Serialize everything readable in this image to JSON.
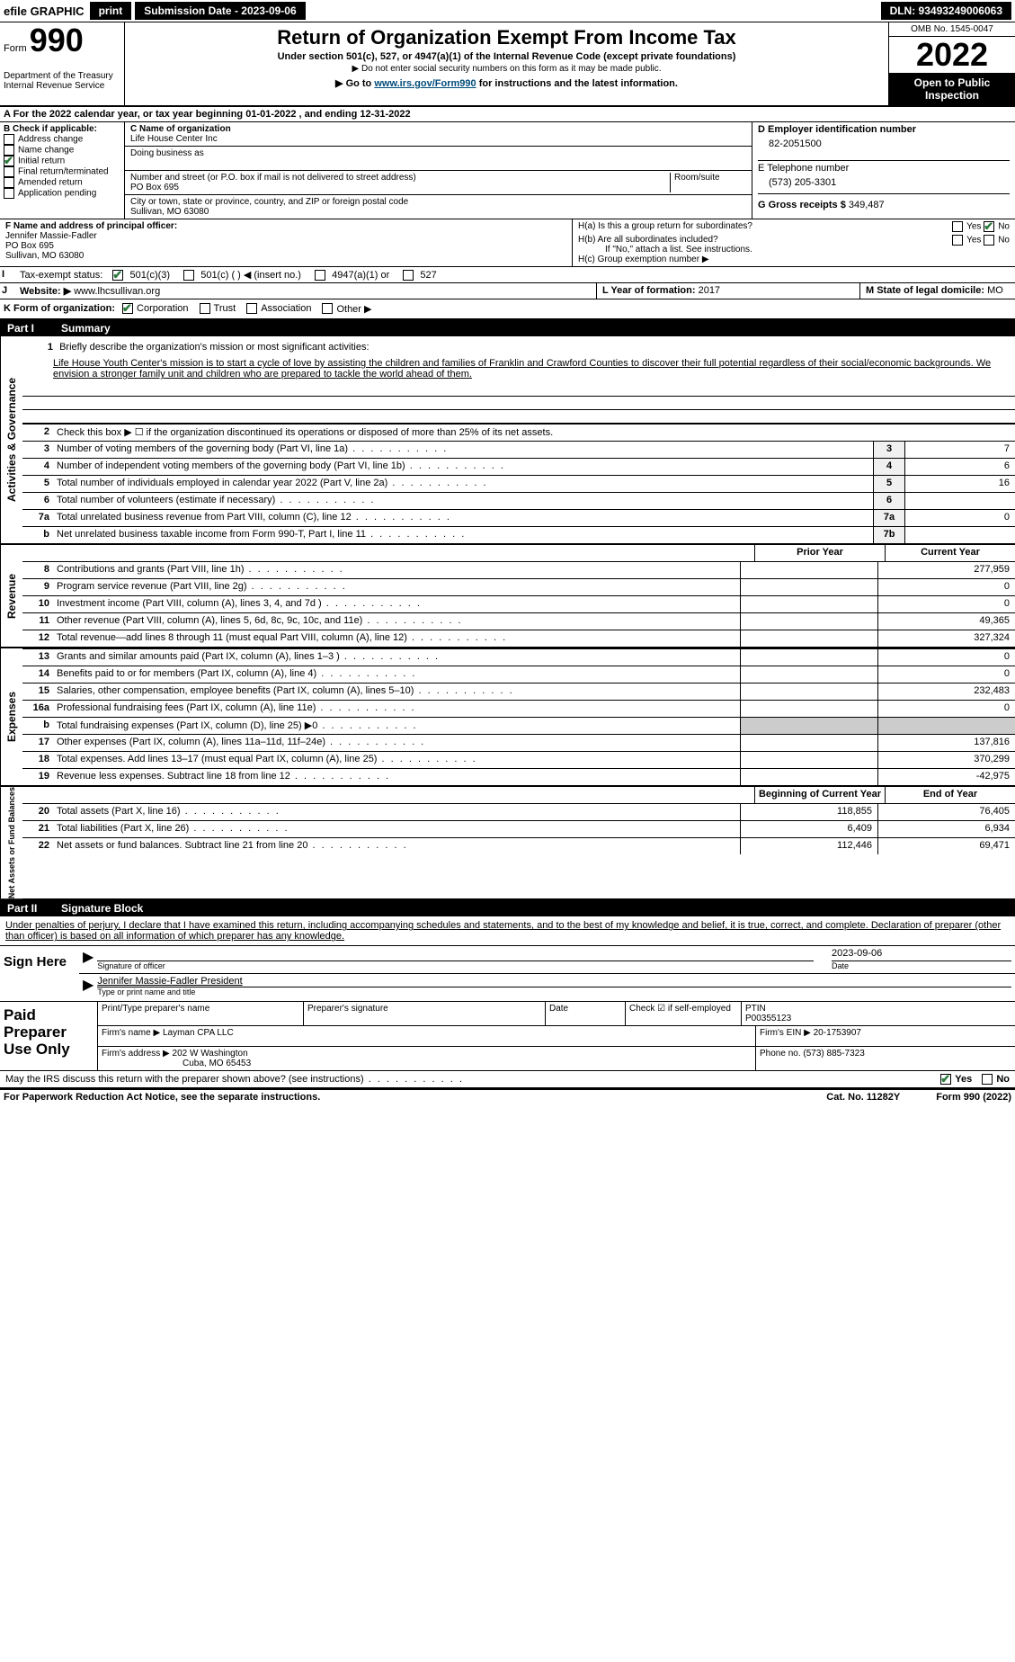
{
  "topbar": {
    "efile": "efile GRAPHIC",
    "print": "print",
    "submission": "Submission Date - 2023-09-06",
    "dln": "DLN: 93493249006063"
  },
  "header": {
    "form_label": "Form",
    "form_number": "990",
    "dept": "Department of the Treasury",
    "irs": "Internal Revenue Service",
    "title": "Return of Organization Exempt From Income Tax",
    "sub": "Under section 501(c), 527, or 4947(a)(1) of the Internal Revenue Code (except private foundations)",
    "note": "▶ Do not enter social security numbers on this form as it may be made public.",
    "link_pre": "▶ Go to ",
    "link_url": "www.irs.gov/Form990",
    "link_post": " for instructions and the latest information.",
    "omb": "OMB No. 1545-0047",
    "year": "2022",
    "open": "Open to Public Inspection"
  },
  "line_a": "For the 2022 calendar year, or tax year beginning 01-01-2022   , and ending 12-31-2022",
  "box_b": {
    "title": "B Check if applicable:",
    "items": [
      "Address change",
      "Name change",
      "Initial return",
      "Final return/terminated",
      "Amended return",
      "Application pending"
    ],
    "checked_index": 2
  },
  "box_c": {
    "name_label": "C Name of organization",
    "name": "Life House Center Inc",
    "dba_label": "Doing business as",
    "addr_label": "Number and street (or P.O. box if mail is not delivered to street address)",
    "room_label": "Room/suite",
    "addr": "PO Box 695",
    "city_label": "City or town, state or province, country, and ZIP or foreign postal code",
    "city": "Sullivan, MO  63080"
  },
  "box_d": {
    "ein_label": "D Employer identification number",
    "ein": "82-2051500",
    "phone_label": "E Telephone number",
    "phone": "(573) 205-3301",
    "receipts_label": "G Gross receipts $",
    "receipts": "349,487"
  },
  "box_f": {
    "label": "F  Name and address of principal officer:",
    "name": "Jennifer Massie-Fadler",
    "addr1": "PO Box 695",
    "addr2": "Sullivan, MO  63080"
  },
  "box_h": {
    "ha": "H(a)  Is this a group return for subordinates?",
    "ha_yes": "Yes",
    "ha_no": "No",
    "hb": "H(b)  Are all subordinates included?",
    "hb_yes": "Yes",
    "hb_no": "No",
    "hb_note": "If \"No,\" attach a list. See instructions.",
    "hc": "H(c)  Group exemption number ▶"
  },
  "line_i": {
    "label": "Tax-exempt status:",
    "opts": [
      "501(c)(3)",
      "501(c) (  ) ◀ (insert no.)",
      "4947(a)(1) or",
      "527"
    ]
  },
  "line_j": {
    "label": "Website: ▶",
    "url": "www.lhcsullivan.org"
  },
  "line_k": {
    "label": "K Form of organization:",
    "opts": [
      "Corporation",
      "Trust",
      "Association",
      "Other ▶"
    ],
    "l_label": "L Year of formation:",
    "l_val": "2017",
    "m_label": "M State of legal domicile:",
    "m_val": "MO"
  },
  "part1": {
    "title": "Summary",
    "tabs": [
      "Activities & Governance",
      "Revenue",
      "Expenses",
      "Net Assets or Fund Balances"
    ],
    "q1_label": "1",
    "q1_text": "Briefly describe the organization's mission or most significant activities:",
    "mission": "Life House Youth Center's mission is to start a cycle of love by assisting the children and families of Franklin and Crawford Counties to discover their full potential regardless of their social/economic backgrounds. We envision a stronger family unit and children who are prepared to tackle the world ahead of them.",
    "q2": "Check this box ▶ ☐  if the organization discontinued its operations or disposed of more than 25% of its net assets.",
    "lines_gov": [
      {
        "n": "3",
        "t": "Number of voting members of the governing body (Part VI, line 1a)",
        "box": "3",
        "v": "7"
      },
      {
        "n": "4",
        "t": "Number of independent voting members of the governing body (Part VI, line 1b)",
        "box": "4",
        "v": "6"
      },
      {
        "n": "5",
        "t": "Total number of individuals employed in calendar year 2022 (Part V, line 2a)",
        "box": "5",
        "v": "16"
      },
      {
        "n": "6",
        "t": "Total number of volunteers (estimate if necessary)",
        "box": "6",
        "v": ""
      },
      {
        "n": "7a",
        "t": "Total unrelated business revenue from Part VIII, column (C), line 12",
        "box": "7a",
        "v": "0"
      },
      {
        "n": "b",
        "t": "Net unrelated business taxable income from Form 990-T, Part I, line 11",
        "box": "7b",
        "v": ""
      }
    ],
    "col_prior": "Prior Year",
    "col_current": "Current Year",
    "lines_rev": [
      {
        "n": "8",
        "t": "Contributions and grants (Part VIII, line 1h)",
        "p": "",
        "c": "277,959"
      },
      {
        "n": "9",
        "t": "Program service revenue (Part VIII, line 2g)",
        "p": "",
        "c": "0"
      },
      {
        "n": "10",
        "t": "Investment income (Part VIII, column (A), lines 3, 4, and 7d )",
        "p": "",
        "c": "0"
      },
      {
        "n": "11",
        "t": "Other revenue (Part VIII, column (A), lines 5, 6d, 8c, 9c, 10c, and 11e)",
        "p": "",
        "c": "49,365"
      },
      {
        "n": "12",
        "t": "Total revenue—add lines 8 through 11 (must equal Part VIII, column (A), line 12)",
        "p": "",
        "c": "327,324"
      }
    ],
    "lines_exp": [
      {
        "n": "13",
        "t": "Grants and similar amounts paid (Part IX, column (A), lines 1–3 )",
        "p": "",
        "c": "0"
      },
      {
        "n": "14",
        "t": "Benefits paid to or for members (Part IX, column (A), line 4)",
        "p": "",
        "c": "0"
      },
      {
        "n": "15",
        "t": "Salaries, other compensation, employee benefits (Part IX, column (A), lines 5–10)",
        "p": "",
        "c": "232,483"
      },
      {
        "n": "16a",
        "t": "Professional fundraising fees (Part IX, column (A), line 11e)",
        "p": "",
        "c": "0"
      },
      {
        "n": "b",
        "t": "Total fundraising expenses (Part IX, column (D), line 25) ▶0",
        "p": "—",
        "c": "—"
      },
      {
        "n": "17",
        "t": "Other expenses (Part IX, column (A), lines 11a–11d, 11f–24e)",
        "p": "",
        "c": "137,816"
      },
      {
        "n": "18",
        "t": "Total expenses. Add lines 13–17 (must equal Part IX, column (A), line 25)",
        "p": "",
        "c": "370,299"
      },
      {
        "n": "19",
        "t": "Revenue less expenses. Subtract line 18 from line 12",
        "p": "",
        "c": "-42,975"
      }
    ],
    "col_begin": "Beginning of Current Year",
    "col_end": "End of Year",
    "lines_net": [
      {
        "n": "20",
        "t": "Total assets (Part X, line 16)",
        "p": "118,855",
        "c": "76,405"
      },
      {
        "n": "21",
        "t": "Total liabilities (Part X, line 26)",
        "p": "6,409",
        "c": "6,934"
      },
      {
        "n": "22",
        "t": "Net assets or fund balances. Subtract line 21 from line 20",
        "p": "112,446",
        "c": "69,471"
      }
    ]
  },
  "part2": {
    "title": "Signature Block",
    "declaration": "Under penalties of perjury, I declare that I have examined this return, including accompanying schedules and statements, and to the best of my knowledge and belief, it is true, correct, and complete. Declaration of preparer (other than officer) is based on all information of which preparer has any knowledge.",
    "sign_here": "Sign Here",
    "sig_officer": "Signature of officer",
    "sig_date": "Date",
    "sig_date_val": "2023-09-06",
    "officer_name": "Jennifer Massie-Fadler  President",
    "officer_label": "Type or print name and title",
    "paid": "Paid Preparer Use Only",
    "prep_name_label": "Print/Type preparer's name",
    "prep_sig_label": "Preparer's signature",
    "prep_date_label": "Date",
    "prep_check": "Check ☑ if self-employed",
    "ptin_label": "PTIN",
    "ptin": "P00355123",
    "firm_name_label": "Firm's name    ▶",
    "firm_name": "Layman CPA LLC",
    "firm_ein_label": "Firm's EIN ▶",
    "firm_ein": "20-1753907",
    "firm_addr_label": "Firm's address ▶",
    "firm_addr": "202 W Washington",
    "firm_city": "Cuba, MO  65453",
    "firm_phone_label": "Phone no.",
    "firm_phone": "(573) 885-7323",
    "discuss": "May the IRS discuss this return with the preparer shown above? (see instructions)",
    "discuss_yes": "Yes",
    "discuss_no": "No"
  },
  "footer": {
    "left": "For Paperwork Reduction Act Notice, see the separate instructions.",
    "cat": "Cat. No. 11282Y",
    "right": "Form 990 (2022)"
  }
}
